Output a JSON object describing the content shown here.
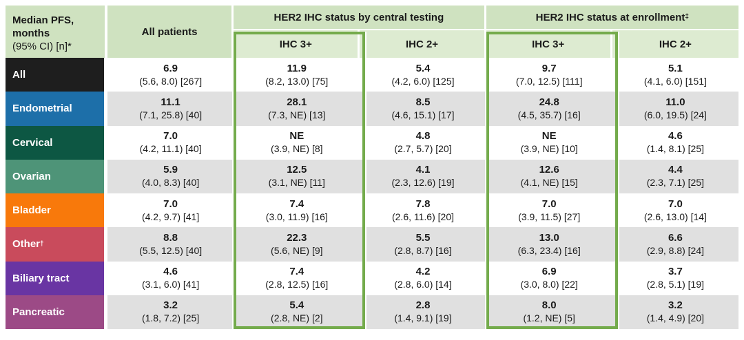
{
  "colors": {
    "header_green": "#cfe2c0",
    "subheader_green": "#ddebd1",
    "highlight_border_green": "#74ab4c",
    "alt_row_gray": "#e0e0e0",
    "text": "#1a1a1a"
  },
  "chart_data": {
    "type": "table",
    "title": "Median PFS, months (95% CI) [n]*",
    "corner": {
      "title_line1": "Median PFS,",
      "title_line2": "months",
      "subtitle": "(95% CI) [n]*"
    },
    "all_patients_header": "All patients",
    "groups": [
      {
        "label": "HER2 IHC status by central testing",
        "sup": ""
      },
      {
        "label": "HER2 IHC status at enrollment",
        "sup": "‡"
      }
    ],
    "sub_headers": [
      "IHC 3+",
      "IHC 2+",
      "IHC 3+",
      "IHC 2+"
    ],
    "highlight_note": "IHC 3+ columns outlined in green",
    "rows": [
      {
        "label": "All",
        "sup": "",
        "color": "#1e1e1e",
        "cells": [
          {
            "median": "6.9",
            "ci_n": "(5.6, 8.0) [267]"
          },
          {
            "median": "11.9",
            "ci_n": "(8.2, 13.0) [75]"
          },
          {
            "median": "5.4",
            "ci_n": "(4.2, 6.0) [125]"
          },
          {
            "median": "9.7",
            "ci_n": "(7.0, 12.5) [111]"
          },
          {
            "median": "5.1",
            "ci_n": "(4.1, 6.0) [151]"
          }
        ]
      },
      {
        "label": "Endometrial",
        "sup": "",
        "color": "#1d6fa9",
        "cells": [
          {
            "median": "11.1",
            "ci_n": "(7.1, 25.8) [40]"
          },
          {
            "median": "28.1",
            "ci_n": "(7.3, NE) [13]"
          },
          {
            "median": "8.5",
            "ci_n": "(4.6, 15.1) [17]"
          },
          {
            "median": "24.8",
            "ci_n": "(4.5, 35.7) [16]"
          },
          {
            "median": "11.0",
            "ci_n": "(6.0, 19.5) [24]"
          }
        ]
      },
      {
        "label": "Cervical",
        "sup": "",
        "color": "#0d5743",
        "cells": [
          {
            "median": "7.0",
            "ci_n": "(4.2, 11.1) [40]"
          },
          {
            "median": "NE",
            "ci_n": "(3.9, NE) [8]"
          },
          {
            "median": "4.8",
            "ci_n": "(2.7, 5.7) [20]"
          },
          {
            "median": "NE",
            "ci_n": "(3.9, NE) [10]"
          },
          {
            "median": "4.6",
            "ci_n": "(1.4, 8.1) [25]"
          }
        ]
      },
      {
        "label": "Ovarian",
        "sup": "",
        "color": "#4e9478",
        "cells": [
          {
            "median": "5.9",
            "ci_n": "(4.0, 8.3) [40]"
          },
          {
            "median": "12.5",
            "ci_n": "(3.1, NE) [11]"
          },
          {
            "median": "4.1",
            "ci_n": "(2.3, 12.6) [19]"
          },
          {
            "median": "12.6",
            "ci_n": "(4.1, NE) [15]"
          },
          {
            "median": "4.4",
            "ci_n": "(2.3, 7.1) [25]"
          }
        ]
      },
      {
        "label": "Bladder",
        "sup": "",
        "color": "#f8790b",
        "cells": [
          {
            "median": "7.0",
            "ci_n": "(4.2, 9.7) [41]"
          },
          {
            "median": "7.4",
            "ci_n": "(3.0, 11.9) [16]"
          },
          {
            "median": "7.8",
            "ci_n": "(2.6, 11.6) [20]"
          },
          {
            "median": "7.0",
            "ci_n": "(3.9, 11.5) [27]"
          },
          {
            "median": "7.0",
            "ci_n": "(2.6, 13.0) [14]"
          }
        ]
      },
      {
        "label": "Other",
        "sup": "†",
        "color": "#c94b5c",
        "cells": [
          {
            "median": "8.8",
            "ci_n": "(5.5, 12.5) [40]"
          },
          {
            "median": "22.3",
            "ci_n": "(5.6, NE) [9]"
          },
          {
            "median": "5.5",
            "ci_n": "(2.8, 8.7) [16]"
          },
          {
            "median": "13.0",
            "ci_n": "(6.3, 23.4) [16]"
          },
          {
            "median": "6.6",
            "ci_n": "(2.9, 8.8) [24]"
          }
        ]
      },
      {
        "label": "Biliary tract",
        "sup": "",
        "color": "#6935a3",
        "cells": [
          {
            "median": "4.6",
            "ci_n": "(3.1, 6.0) [41]"
          },
          {
            "median": "7.4",
            "ci_n": "(2.8, 12.5) [16]"
          },
          {
            "median": "4.2",
            "ci_n": "(2.8, 6.0) [14]"
          },
          {
            "median": "6.9",
            "ci_n": "(3.0, 8.0) [22]"
          },
          {
            "median": "3.7",
            "ci_n": "(2.8, 5.1) [19]"
          }
        ]
      },
      {
        "label": "Pancreatic",
        "sup": "",
        "color": "#9c4a86",
        "cells": [
          {
            "median": "3.2",
            "ci_n": "(1.8, 7.2) [25]"
          },
          {
            "median": "5.4",
            "ci_n": "(2.8, NE) [2]"
          },
          {
            "median": "2.8",
            "ci_n": "(1.4, 9.1) [19]"
          },
          {
            "median": "8.0",
            "ci_n": "(1.2, NE) [5]"
          },
          {
            "median": "3.2",
            "ci_n": "(1.4, 4.9) [20]"
          }
        ]
      }
    ]
  }
}
